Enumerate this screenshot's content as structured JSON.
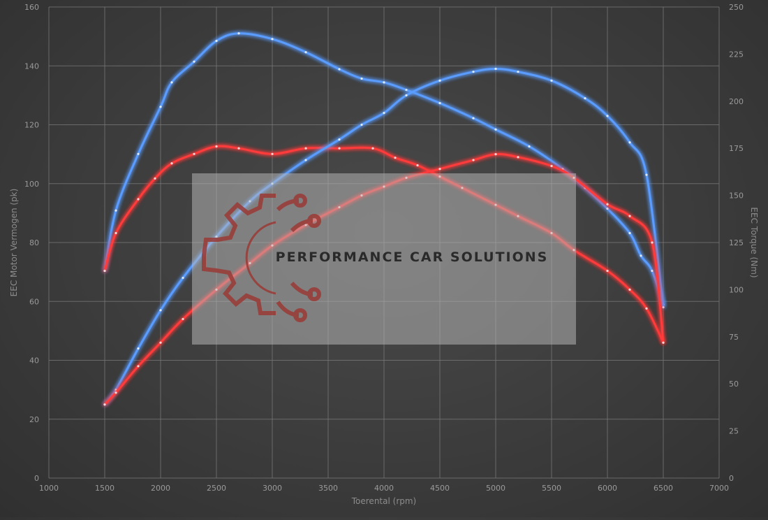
{
  "watermark": {
    "text": "PERFORMANCE CAR SOLUTIONS"
  },
  "chart_data": {
    "type": "line",
    "title": "",
    "xlabel": "Toerental (rpm)",
    "ylabel_left": "EEC Motor Vermogen (pk)",
    "ylabel_right": "EEC Torque (Nm)",
    "xlim": [
      1000,
      7000
    ],
    "xticks": [
      1000,
      1500,
      2000,
      2500,
      3000,
      3500,
      4000,
      4500,
      5000,
      5500,
      6000,
      6500,
      7000
    ],
    "ylim_left": [
      0,
      160
    ],
    "yticks_left": [
      0,
      20,
      40,
      60,
      80,
      100,
      120,
      140,
      160
    ],
    "ylim_right": [
      0,
      250
    ],
    "yticks_right": [
      0,
      25,
      50,
      75,
      100,
      125,
      150,
      175,
      200,
      225,
      250
    ],
    "grid": true,
    "colors": {
      "tuned": "#5a9cff",
      "stock": "#ff3a3a"
    },
    "series": [
      {
        "axis": "right",
        "color_key": "tuned",
        "x": [
          1500,
          1600,
          1800,
          2000,
          2100,
          2300,
          2500,
          2700,
          3000,
          3300,
          3600,
          3800,
          4000,
          4200,
          4500,
          4800,
          5000,
          5300,
          5600,
          5800,
          6000,
          6200,
          6300,
          6400,
          6500
        ],
        "y": [
          110,
          142,
          172,
          197,
          210,
          221,
          232,
          236,
          233,
          226,
          217,
          212,
          210,
          206,
          199,
          191,
          185,
          176,
          164,
          154,
          143,
          130,
          118,
          110,
          92
        ]
      },
      {
        "axis": "right",
        "color_key": "stock",
        "x": [
          1500,
          1600,
          1800,
          1950,
          2100,
          2300,
          2500,
          2700,
          3000,
          3300,
          3600,
          3900,
          4100,
          4300,
          4500,
          4700,
          5000,
          5200,
          5500,
          5700,
          6000,
          6200,
          6350,
          6500
        ],
        "y": [
          110,
          130,
          148,
          159,
          167,
          172,
          176,
          175,
          172,
          175,
          175,
          175,
          170,
          166,
          160,
          154,
          145,
          139,
          130,
          121,
          110,
          100,
          90,
          72
        ]
      },
      {
        "axis": "left",
        "color_key": "tuned",
        "x": [
          1500,
          1600,
          1800,
          2000,
          2200,
          2500,
          2800,
          3000,
          3300,
          3600,
          3800,
          4000,
          4200,
          4500,
          4800,
          5000,
          5200,
          5500,
          5800,
          6000,
          6200,
          6350,
          6500
        ],
        "y": [
          25,
          30,
          44,
          57,
          68,
          82,
          94,
          100,
          108,
          115,
          120,
          124,
          130,
          135,
          138,
          139,
          138,
          135,
          129,
          123,
          114,
          103,
          58
        ]
      },
      {
        "axis": "left",
        "color_key": "stock",
        "x": [
          1500,
          1600,
          1800,
          2000,
          2200,
          2500,
          2800,
          3000,
          3300,
          3600,
          3800,
          4000,
          4200,
          4500,
          4800,
          5000,
          5200,
          5500,
          5700,
          6000,
          6200,
          6400,
          6500
        ],
        "y": [
          25,
          29,
          38,
          46,
          54,
          64,
          73,
          79,
          86,
          92,
          96,
          99,
          102,
          105,
          108,
          110,
          109,
          106,
          102,
          93,
          89,
          80,
          46
        ]
      }
    ]
  }
}
